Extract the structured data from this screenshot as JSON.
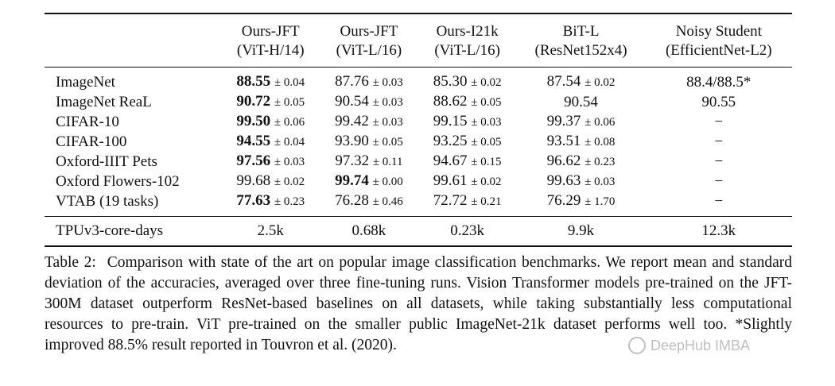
{
  "table": {
    "headers": [
      {
        "line1": "",
        "line2": ""
      },
      {
        "line1": "Ours-JFT",
        "line2": "(ViT-H/14)"
      },
      {
        "line1": "Ours-JFT",
        "line2": "(ViT-L/16)"
      },
      {
        "line1": "Ours-I21k",
        "line2": "(ViT-L/16)"
      },
      {
        "line1": "BiT-L",
        "line2": "(ResNet152x4)"
      },
      {
        "line1": "Noisy Student",
        "line2": "(EfficientNet-L2)"
      }
    ],
    "rows": [
      {
        "label": "ImageNet",
        "cells": [
          {
            "value": "88.55",
            "pm": "± 0.04",
            "bold": true
          },
          {
            "value": "87.76",
            "pm": "± 0.03",
            "bold": false
          },
          {
            "value": "85.30",
            "pm": "± 0.02",
            "bold": false
          },
          {
            "value": "87.54",
            "pm": "± 0.02",
            "bold": false
          },
          {
            "value": "88.4/88.5*",
            "pm": "",
            "bold": false
          }
        ]
      },
      {
        "label": "ImageNet ReaL",
        "cells": [
          {
            "value": "90.72",
            "pm": "± 0.05",
            "bold": true
          },
          {
            "value": "90.54",
            "pm": "± 0.03",
            "bold": false
          },
          {
            "value": "88.62",
            "pm": "± 0.05",
            "bold": false
          },
          {
            "value": "90.54",
            "pm": "",
            "bold": false
          },
          {
            "value": "90.55",
            "pm": "",
            "bold": false
          }
        ]
      },
      {
        "label": "CIFAR-10",
        "cells": [
          {
            "value": "99.50",
            "pm": "± 0.06",
            "bold": true
          },
          {
            "value": "99.42",
            "pm": "± 0.03",
            "bold": false
          },
          {
            "value": "99.15",
            "pm": "± 0.03",
            "bold": false
          },
          {
            "value": "99.37",
            "pm": "± 0.06",
            "bold": false
          },
          {
            "value": "−",
            "pm": "",
            "bold": false
          }
        ]
      },
      {
        "label": "CIFAR-100",
        "cells": [
          {
            "value": "94.55",
            "pm": "± 0.04",
            "bold": true
          },
          {
            "value": "93.90",
            "pm": "± 0.05",
            "bold": false
          },
          {
            "value": "93.25",
            "pm": "± 0.05",
            "bold": false
          },
          {
            "value": "93.51",
            "pm": "± 0.08",
            "bold": false
          },
          {
            "value": "−",
            "pm": "",
            "bold": false
          }
        ]
      },
      {
        "label": "Oxford-IIIT Pets",
        "cells": [
          {
            "value": "97.56",
            "pm": "± 0.03",
            "bold": true
          },
          {
            "value": "97.32",
            "pm": "± 0.11",
            "bold": false
          },
          {
            "value": "94.67",
            "pm": "± 0.15",
            "bold": false
          },
          {
            "value": "96.62",
            "pm": "± 0.23",
            "bold": false
          },
          {
            "value": "−",
            "pm": "",
            "bold": false
          }
        ]
      },
      {
        "label": "Oxford Flowers-102",
        "cells": [
          {
            "value": "99.68",
            "pm": "± 0.02",
            "bold": false
          },
          {
            "value": "99.74",
            "pm": "± 0.00",
            "bold": true
          },
          {
            "value": "99.61",
            "pm": "± 0.02",
            "bold": false
          },
          {
            "value": "99.63",
            "pm": "± 0.03",
            "bold": false
          },
          {
            "value": "−",
            "pm": "",
            "bold": false
          }
        ]
      },
      {
        "label": "VTAB (19 tasks)",
        "cells": [
          {
            "value": "77.63",
            "pm": "± 0.23",
            "bold": true
          },
          {
            "value": "76.28",
            "pm": "± 0.46",
            "bold": false
          },
          {
            "value": "72.72",
            "pm": "± 0.21",
            "bold": false
          },
          {
            "value": "76.29",
            "pm": "± 1.70",
            "bold": false
          },
          {
            "value": "−",
            "pm": "",
            "bold": false
          }
        ]
      }
    ],
    "footer": {
      "label": "TPUv3-core-days",
      "cells": [
        "2.5k",
        "0.68k",
        "0.23k",
        "9.9k",
        "12.3k"
      ]
    }
  },
  "caption": {
    "label": "Table 2:",
    "text": "Comparison with state of the art on popular image classification benchmarks. We report mean and standard deviation of the accuracies, averaged over three fine-tuning runs. Vision Transformer models pre-trained on the JFT-300M dataset outperform ResNet-based baselines on all datasets, while taking substantially less computational resources to pre-train. ViT pre-trained on the smaller public ImageNet-21k dataset performs well too. *Slightly improved 88.5% result reported in Touvron et al. (2020)."
  },
  "watermark": {
    "text": "DeepHub IMBA"
  }
}
